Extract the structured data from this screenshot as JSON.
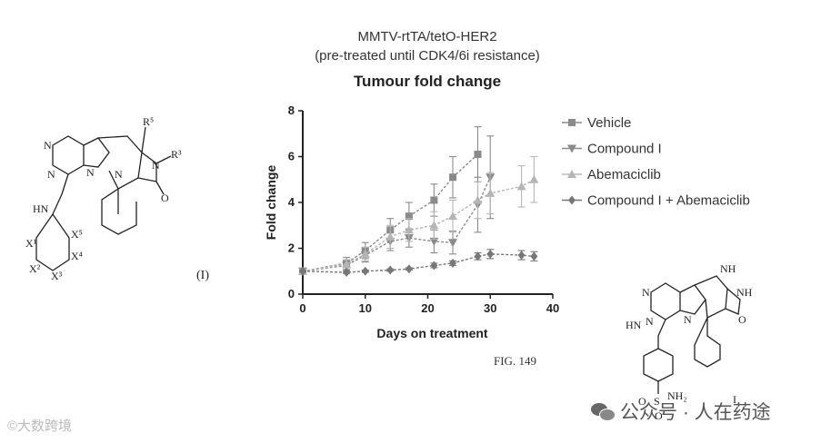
{
  "figure": {
    "title_line1": "MMTV-rtTA/tetO-HER2",
    "title_line2": "(pre-treated until CDK4/6i resistance)",
    "fig_label": "FIG. 149",
    "formula_label": "(I)",
    "compound_label": "I"
  },
  "structures": {
    "left": {
      "labels": [
        "N",
        "N",
        "N",
        "N",
        "N",
        "O",
        "HN",
        "R5",
        "R3",
        "X1",
        "X2",
        "X3",
        "X4",
        "X5"
      ]
    },
    "right": {
      "labels": [
        "N",
        "N",
        "N",
        "NH",
        "NH",
        "N",
        "O",
        "HN",
        "S",
        "O",
        "O",
        "NH2"
      ]
    }
  },
  "watermarks": {
    "left_text": "©大数跨境",
    "right_text": "公众号 · 人在药途",
    "right_icon": "wechat-icon"
  },
  "chart_data": {
    "type": "line",
    "title": "Tumour fold change",
    "xlabel": "Days on treatment",
    "ylabel": "Fold change",
    "xlim": [
      0,
      40
    ],
    "ylim": [
      0,
      8
    ],
    "xticks": [
      0,
      10,
      20,
      30,
      40
    ],
    "yticks": [
      0,
      2,
      4,
      6,
      8
    ],
    "legend_position": "right",
    "series": [
      {
        "name": "Vehicle",
        "marker": "square",
        "color": "#8a8a8a",
        "x": [
          0,
          7,
          10,
          14,
          17,
          21,
          24,
          28
        ],
        "y": [
          1.0,
          1.35,
          1.9,
          2.8,
          3.4,
          4.1,
          5.1,
          6.1
        ],
        "err": [
          0.1,
          0.25,
          0.35,
          0.5,
          0.6,
          0.7,
          0.9,
          1.2
        ]
      },
      {
        "name": "Compound I",
        "marker": "triangle-down",
        "color": "#8a8a8a",
        "x": [
          0,
          7,
          10,
          14,
          17,
          21,
          24,
          28,
          30
        ],
        "y": [
          1.0,
          1.25,
          1.7,
          2.3,
          2.45,
          2.3,
          2.25,
          3.9,
          5.1
        ],
        "err": [
          0.1,
          0.2,
          0.3,
          0.4,
          0.4,
          0.5,
          0.5,
          1.2,
          1.8
        ]
      },
      {
        "name": "Abemaciclib",
        "marker": "triangle-up",
        "color": "#b5b5b5",
        "x": [
          0,
          7,
          10,
          14,
          17,
          21,
          24,
          28,
          30,
          35,
          37
        ],
        "y": [
          1.0,
          1.3,
          1.75,
          2.5,
          2.8,
          3.0,
          3.4,
          4.1,
          4.4,
          4.7,
          5.0
        ],
        "err": [
          0.1,
          0.2,
          0.3,
          0.5,
          0.5,
          0.6,
          0.7,
          0.8,
          0.9,
          0.9,
          1.0
        ]
      },
      {
        "name": "Compound I + Abemaciclib",
        "marker": "diamond",
        "color": "#777777",
        "x": [
          0,
          7,
          10,
          14,
          17,
          21,
          24,
          28,
          30,
          35,
          37
        ],
        "y": [
          1.0,
          0.95,
          1.0,
          1.05,
          1.1,
          1.25,
          1.35,
          1.65,
          1.75,
          1.7,
          1.65
        ],
        "err": [
          0.05,
          0.05,
          0.05,
          0.05,
          0.05,
          0.1,
          0.1,
          0.15,
          0.2,
          0.2,
          0.2
        ]
      }
    ]
  }
}
